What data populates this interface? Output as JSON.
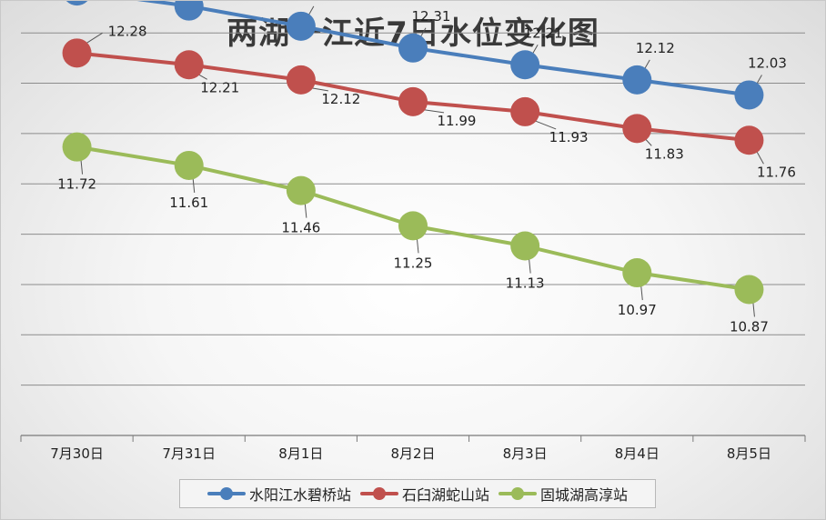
{
  "chart_data": {
    "type": "line",
    "title": "两湖一江近7日水位变化图",
    "categories": [
      "7月30日",
      "7月31日",
      "8月1日",
      "8月2日",
      "8月3日",
      "8月4日",
      "8月5日"
    ],
    "ylim": [
      10.0,
      12.9
    ],
    "grid": true,
    "legend_position": "bottom",
    "series": [
      {
        "name": "水阳江水碧桥站",
        "color": "#4a7ebb",
        "values": [
          12.65,
          12.56,
          12.44,
          12.31,
          12.21,
          12.12,
          12.03
        ],
        "label_position": "above"
      },
      {
        "name": "石臼湖蛇山站",
        "color": "#c0504d",
        "values": [
          12.28,
          12.21,
          12.12,
          11.99,
          11.93,
          11.83,
          11.76
        ],
        "label_position": "mixed"
      },
      {
        "name": "固城湖高淳站",
        "color": "#9bbb59",
        "values": [
          11.72,
          11.61,
          11.46,
          11.25,
          11.13,
          10.97,
          10.87
        ],
        "label_position": "below"
      }
    ]
  }
}
